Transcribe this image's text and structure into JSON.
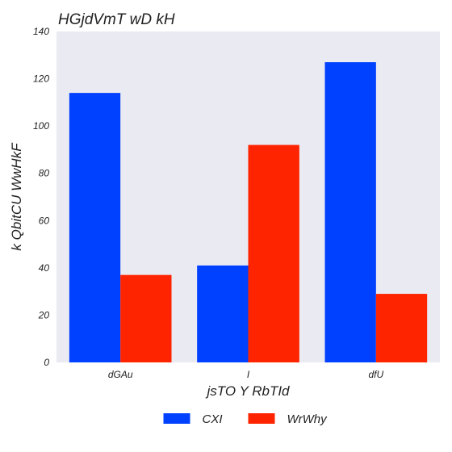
{
  "chart_data": {
    "type": "bar",
    "title": "HGjdVmT wD kH",
    "xlabel": "jsTO Y RbTId",
    "ylabel": "k QbitCU WwHkF",
    "categories": [
      "dGAu",
      "I",
      "dfU"
    ],
    "series": [
      {
        "name": "CXI",
        "values": [
          114,
          41,
          127
        ],
        "color": "#0041ff"
      },
      {
        "name": "WrWhy",
        "values": [
          37,
          92,
          29
        ],
        "color": "#ff2400"
      }
    ],
    "ylim": [
      0,
      140
    ],
    "yticks": [
      0,
      20,
      40,
      60,
      80,
      100,
      120,
      140
    ],
    "grid": false,
    "legend_position": "bottom-center",
    "plot_background": "#eaeaf2"
  }
}
